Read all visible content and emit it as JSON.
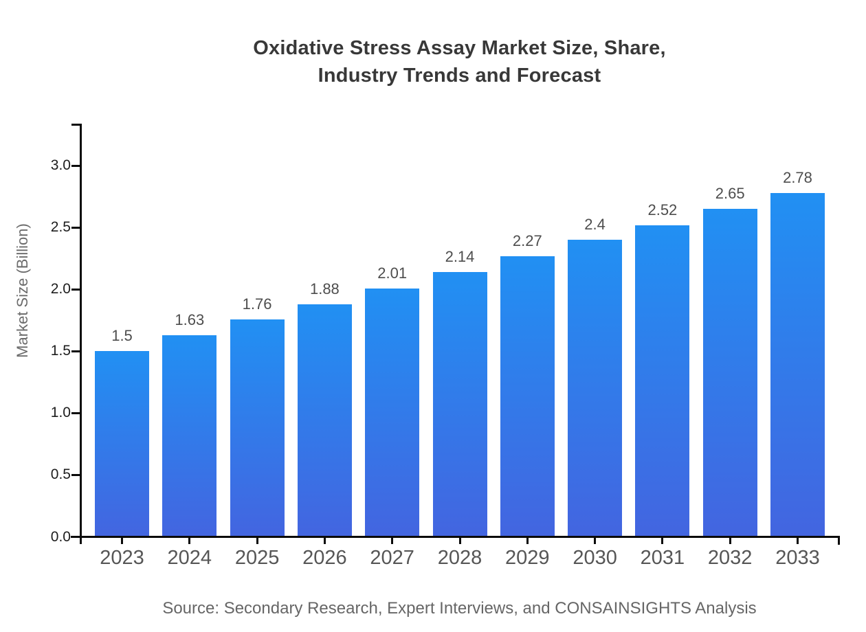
{
  "title": {
    "line1": "Oxidative Stress Assay Market Size, Share,",
    "line2": "Industry Trends and Forecast"
  },
  "chart_data": {
    "type": "bar",
    "title": "Oxidative Stress Assay Market Size, Share, Industry Trends and Forecast",
    "categories": [
      "2023",
      "2024",
      "2025",
      "2026",
      "2027",
      "2028",
      "2029",
      "2030",
      "2031",
      "2032",
      "2033"
    ],
    "values": [
      1.5,
      1.63,
      1.76,
      1.88,
      2.01,
      2.14,
      2.27,
      2.4,
      2.52,
      2.65,
      2.78
    ],
    "xlabel": "",
    "ylabel": "Market Size (Billion)",
    "ylim": [
      0,
      3.34
    ],
    "yticks": [
      "0.0",
      "0.5",
      "1.0",
      "1.5",
      "2.0",
      "2.5",
      "3.0"
    ],
    "grid": false,
    "legend": null,
    "bar_gradient_top": "#2190F3",
    "bar_gradient_bottom": "#4365E0"
  },
  "source_note": "Source: Secondary Research, Expert Interviews, and CONSAINSIGHTS Analysis",
  "colors": {
    "background": "#FFFFFF",
    "axis": "#0A0A0A",
    "title_text": "#383838",
    "y_tick_label": "#1D1D1D",
    "category_label": "#565656",
    "value_label": "#4D4D4D",
    "axis_title": "#6B6B6B",
    "source_text": "#666666"
  }
}
